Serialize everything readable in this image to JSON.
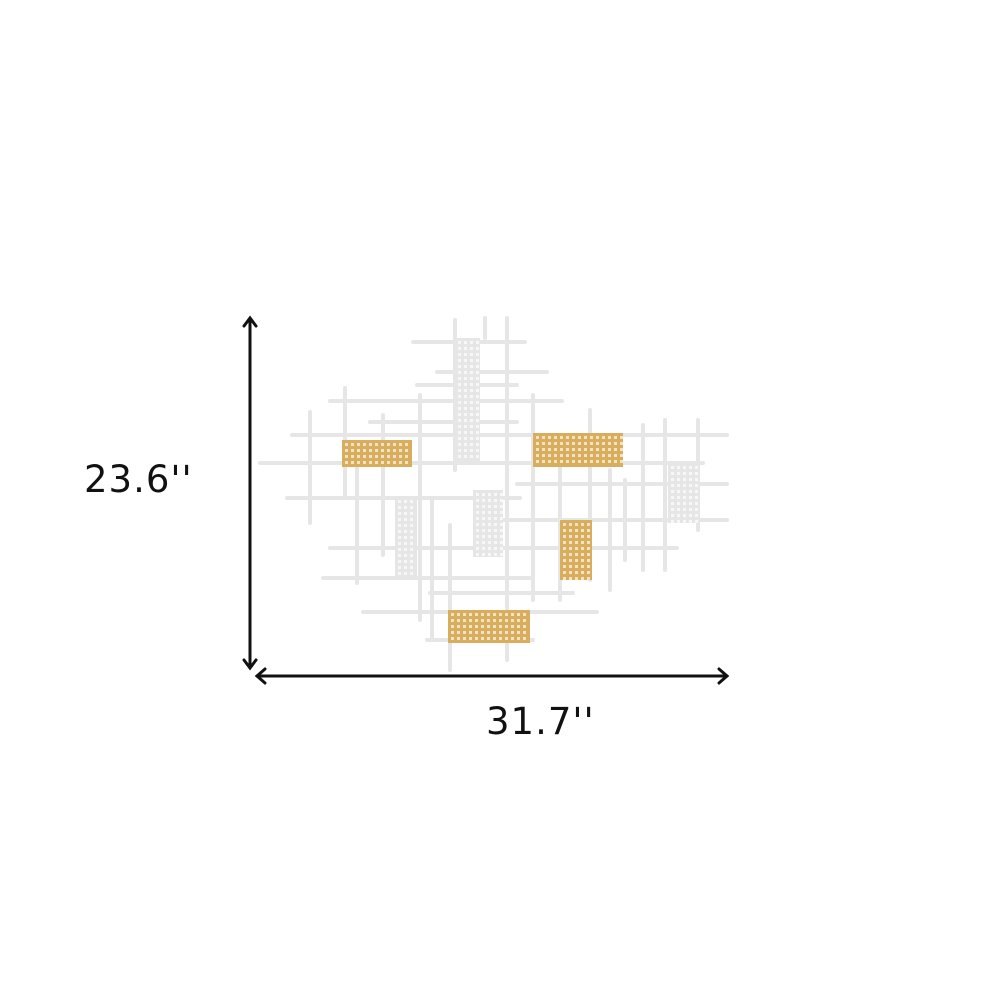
{
  "product": {
    "height_label": "23.6''",
    "width_label": "31.7''"
  },
  "colors": {
    "gold": "#d9ad5e",
    "white_metal": "#e6e6e6",
    "arrow": "#111111"
  }
}
